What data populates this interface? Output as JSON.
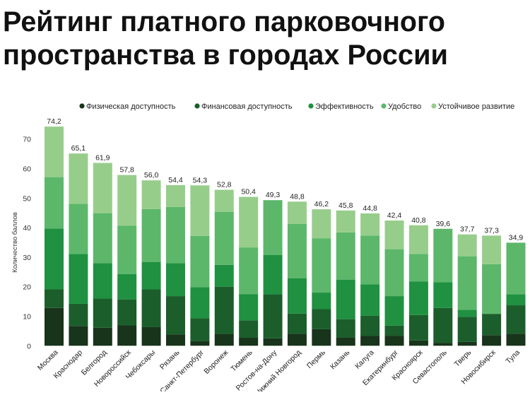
{
  "chart_data": {
    "type": "bar",
    "stacked": true,
    "title": "Рейтинг платного парковочного пространства в городах России",
    "title_lines": [
      "Рейтинг платного парковочного",
      "пространства в городах России"
    ],
    "xlabel": "",
    "ylabel": "Количество баллов",
    "ylim": [
      0,
      75
    ],
    "yticks": [
      0,
      10,
      20,
      30,
      40,
      50,
      60,
      70
    ],
    "grid": false,
    "legend_position": "top",
    "categories": [
      "Москва",
      "Краснодар",
      "Белгород",
      "Новороссийск",
      "Чебоксары",
      "Рязань",
      "Санкт-Петербург",
      "Воронеж",
      "Тюмень",
      "Ростов-на-Дону",
      "Нижний Новгород",
      "Пермь",
      "Казань",
      "Калуга",
      "Екатеринбург",
      "Красноярск",
      "Севастополь",
      "Тверь",
      "Новосибирск",
      "Тула"
    ],
    "totals": [
      74.2,
      65.1,
      61.9,
      57.8,
      56.0,
      54.4,
      54.3,
      52.8,
      50.4,
      49.3,
      48.8,
      46.2,
      45.8,
      44.8,
      42.4,
      40.8,
      39.6,
      37.7,
      37.3,
      34.9
    ],
    "total_labels": [
      "74,2",
      "65,1",
      "61,9",
      "57,8",
      "56,0",
      "54,4",
      "54,3",
      "52,8",
      "50,4",
      "49,3",
      "48,8",
      "46,2",
      "45,8",
      "44,8",
      "42,4",
      "40,8",
      "39,6",
      "37,7",
      "37,3",
      "34,9"
    ],
    "series": [
      {
        "name": "Физическая доступность",
        "color": "#18341b",
        "values": [
          12.8,
          6.7,
          6.1,
          6.9,
          6.3,
          3.8,
          1.6,
          4.0,
          2.7,
          2.5,
          4.1,
          5.6,
          2.8,
          3.4,
          3.4,
          1.8,
          1.0,
          1.3,
          3.6,
          4.1
        ]
      },
      {
        "name": "Финансовая доступность",
        "color": "#1b5e2b",
        "values": [
          6.3,
          7.5,
          9.9,
          8.8,
          12.8,
          13.0,
          7.7,
          16.0,
          5.9,
          14.9,
          6.8,
          6.8,
          6.2,
          6.8,
          3.4,
          8.6,
          11.8,
          8.5,
          7.2,
          9.6
        ]
      },
      {
        "name": "Эффективность",
        "color": "#1f9140",
        "values": [
          20.6,
          16.9,
          12.0,
          8.6,
          9.2,
          11.2,
          10.5,
          7.4,
          8.9,
          13.3,
          11.9,
          5.6,
          13.4,
          10.6,
          10.0,
          11.4,
          8.7,
          2.4,
          0,
          3.7
        ]
      },
      {
        "name": "Удобство",
        "color": "#5cb76b",
        "values": [
          17.4,
          17.0,
          16.9,
          16.4,
          18.0,
          19.0,
          17.4,
          17.9,
          15.8,
          18.6,
          18.5,
          18.4,
          16.0,
          16.5,
          15.9,
          9.3,
          18.1,
          18.1,
          16.8,
          17.5
        ]
      },
      {
        "name": "Устойчивое развитие",
        "color": "#97cd8b",
        "values": [
          17.1,
          17.0,
          17.0,
          17.1,
          9.7,
          7.4,
          17.1,
          7.5,
          17.1,
          0,
          7.5,
          9.8,
          7.4,
          7.5,
          9.7,
          9.7,
          0,
          7.4,
          9.7,
          0
        ]
      }
    ]
  }
}
